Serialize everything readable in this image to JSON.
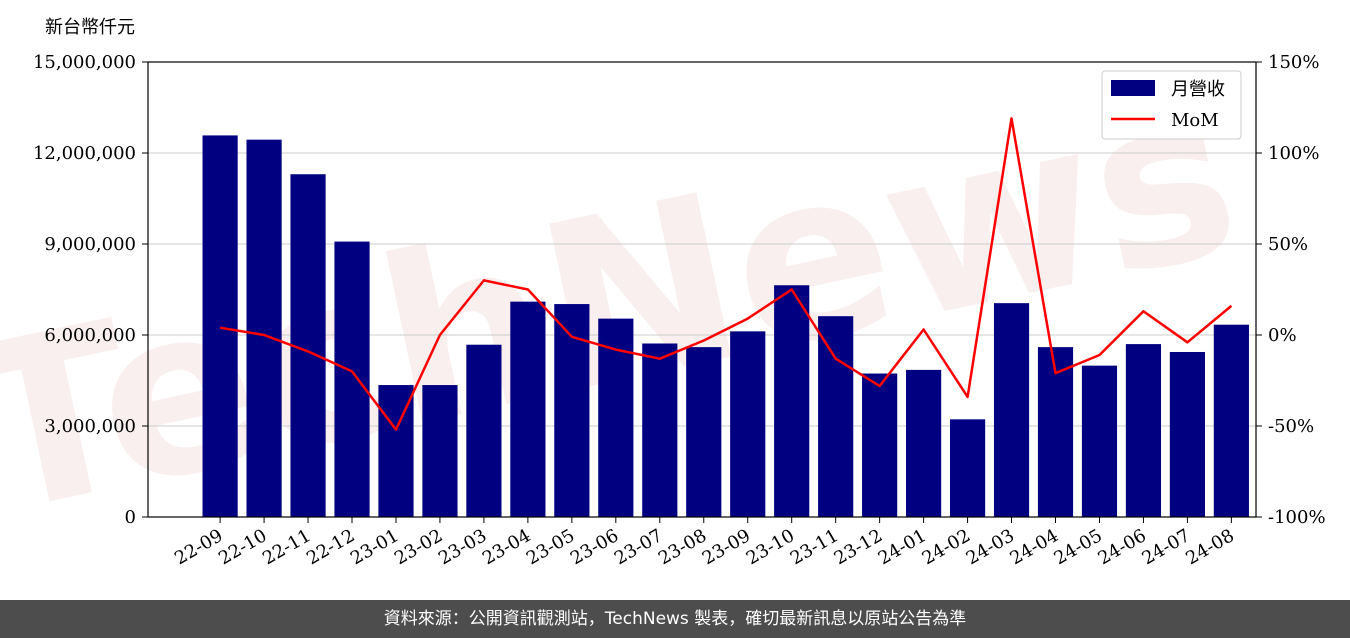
{
  "footer": {
    "source_text": "資料來源：公開資訊觀測站，TechNews 製表，確切最新訊息以原站公告為準"
  },
  "watermark": {
    "text": "TechNews"
  },
  "chart_data": {
    "type": "bar",
    "unit_label": "新台幣仟元",
    "categories": [
      "22-09",
      "22-10",
      "22-11",
      "22-12",
      "23-01",
      "23-02",
      "23-03",
      "23-04",
      "23-05",
      "23-06",
      "23-07",
      "23-08",
      "23-09",
      "23-10",
      "23-11",
      "23-12",
      "24-01",
      "24-02",
      "24-03",
      "24-04",
      "24-05",
      "24-06",
      "24-07",
      "24-08"
    ],
    "series": [
      {
        "name": "月營收",
        "type": "bar",
        "axis": "left",
        "color": "#000080",
        "values": [
          12580000,
          12440000,
          11300000,
          9080000,
          4350000,
          4350000,
          5680000,
          7100000,
          7020000,
          6540000,
          5720000,
          5600000,
          6120000,
          7640000,
          6620000,
          4730000,
          4850000,
          3220000,
          7050000,
          5600000,
          4990000,
          5700000,
          5440000,
          6340000
        ]
      },
      {
        "name": "MoM",
        "type": "line",
        "axis": "right",
        "color": "#ff0000",
        "values": [
          4,
          0,
          -9,
          -20,
          -52,
          0,
          30,
          25,
          -1,
          -8,
          -13,
          -3,
          9,
          25,
          -13,
          -28,
          3,
          -34,
          119,
          -21,
          -11,
          13,
          -4,
          16
        ]
      }
    ],
    "y_left": {
      "min": 0,
      "max": 15000000,
      "ticks": [
        0,
        3000000,
        6000000,
        9000000,
        12000000,
        15000000
      ],
      "tick_labels": [
        "0",
        "3,000,000",
        "6,000,000",
        "9,000,000",
        "12,000,000",
        "15,000,000"
      ]
    },
    "y_right": {
      "min": -100,
      "max": 150,
      "ticks": [
        -100,
        -50,
        0,
        50,
        100,
        150
      ],
      "tick_labels": [
        "-100%",
        "-50%",
        "0%",
        "50%",
        "100%",
        "150%"
      ]
    },
    "grid": "horizontal",
    "legend_position": "top-right"
  }
}
